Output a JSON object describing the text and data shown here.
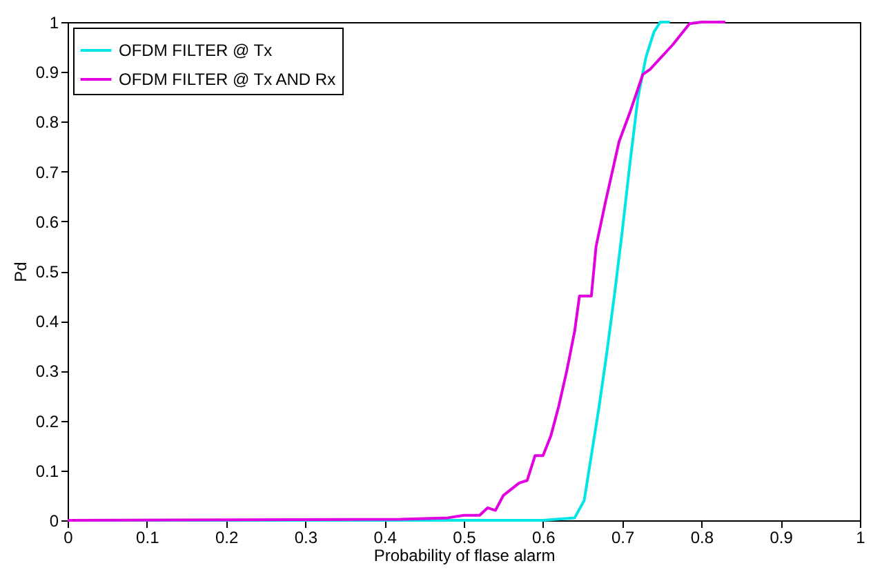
{
  "chart_data": {
    "type": "line",
    "xlabel": "Probability of flase alarm",
    "ylabel": "Pd",
    "xlim": [
      0,
      1
    ],
    "ylim": [
      0,
      1
    ],
    "xticks": [
      0,
      0.1,
      0.2,
      0.3,
      0.4,
      0.5,
      0.6,
      0.7,
      0.8,
      0.9,
      1
    ],
    "yticks": [
      0,
      0.1,
      0.2,
      0.3,
      0.4,
      0.5,
      0.6,
      0.7,
      0.8,
      0.9,
      1
    ],
    "grid": false,
    "legend": "top left",
    "line_style": "solid",
    "marker": "none",
    "series": [
      {
        "name": "OFDM FILTER @ Tx",
        "color": "#00e5e5",
        "x": [
          0,
          0.3,
          0.6,
          0.64,
          0.652,
          0.66,
          0.67,
          0.68,
          0.69,
          0.7,
          0.71,
          0.72,
          0.73,
          0.74,
          0.748,
          0.76
        ],
        "values": [
          0,
          0,
          0,
          0.005,
          0.04,
          0.12,
          0.22,
          0.33,
          0.45,
          0.58,
          0.72,
          0.85,
          0.93,
          0.98,
          1,
          1
        ]
      },
      {
        "name": "OFDM FILTER @ Tx AND Rx",
        "color": "#e000e0",
        "x": [
          0,
          0.42,
          0.48,
          0.5,
          0.52,
          0.53,
          0.54,
          0.55,
          0.57,
          0.58,
          0.59,
          0.6,
          0.61,
          0.62,
          0.63,
          0.64,
          0.646,
          0.661,
          0.667,
          0.679,
          0.696,
          0.71,
          0.726,
          0.735,
          0.764,
          0.785,
          0.8,
          0.83
        ],
        "values": [
          0,
          0.002,
          0.005,
          0.01,
          0.01,
          0.025,
          0.02,
          0.05,
          0.075,
          0.08,
          0.13,
          0.13,
          0.17,
          0.23,
          0.3,
          0.38,
          0.45,
          0.45,
          0.55,
          0.64,
          0.76,
          0.82,
          0.895,
          0.905,
          0.955,
          0.997,
          1,
          1
        ]
      }
    ]
  }
}
